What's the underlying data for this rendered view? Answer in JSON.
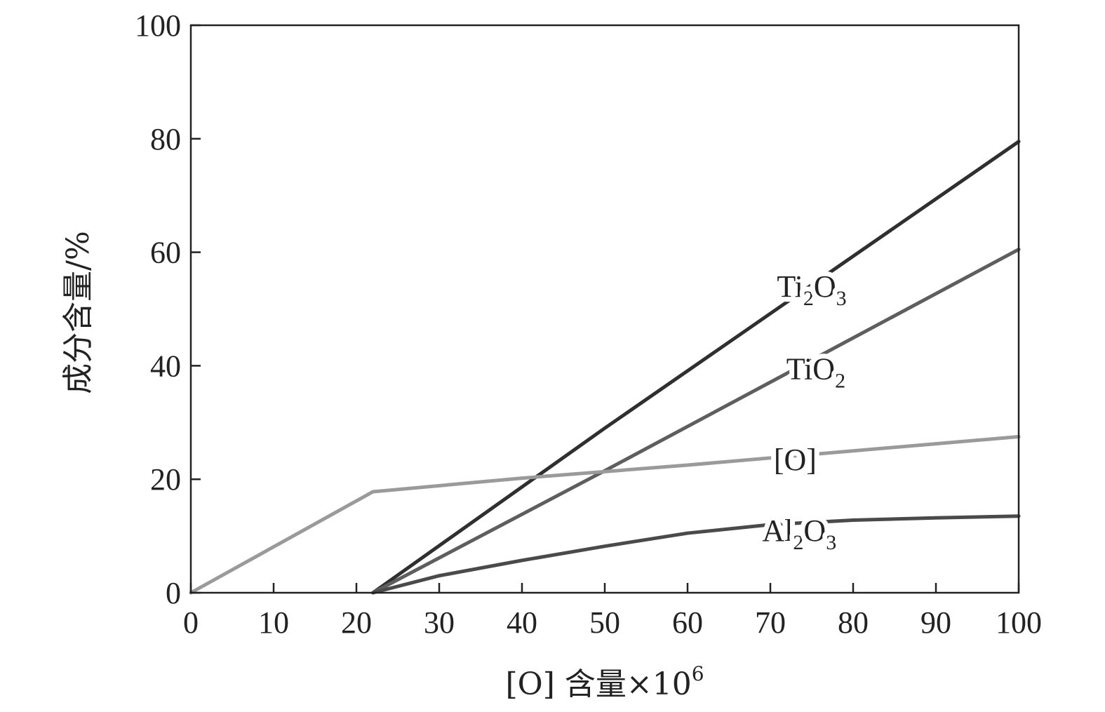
{
  "chart_data": {
    "type": "line",
    "xlabel": "[O] 含量×10",
    "xlabel_sup": "6",
    "ylabel": "成分含量/%",
    "xlim": [
      0,
      100
    ],
    "ylim": [
      0,
      100
    ],
    "x_ticks": [
      0,
      10,
      20,
      30,
      40,
      50,
      60,
      70,
      80,
      90,
      100
    ],
    "y_ticks": [
      0,
      20,
      40,
      60,
      80,
      100
    ],
    "grid": false,
    "series": [
      {
        "name": "Ti2O3",
        "label_parts": [
          [
            "Ti",
            ""
          ],
          [
            "2",
            "sub"
          ],
          [
            "O",
            ""
          ],
          [
            "3",
            "sub"
          ]
        ],
        "color": "#2f2f2f",
        "label_at": [
          75,
          54
        ],
        "x": [
          22,
          50,
          100
        ],
        "y": [
          0,
          29,
          79.5
        ]
      },
      {
        "name": "TiO2",
        "label_parts": [
          [
            "TiO",
            ""
          ],
          [
            "2",
            "sub"
          ]
        ],
        "color": "#5e5e5e",
        "label_at": [
          75.5,
          39.5
        ],
        "x": [
          22,
          50,
          100
        ],
        "y": [
          0,
          21.5,
          60.5
        ]
      },
      {
        "name": "[O]",
        "label_parts": [
          [
            "[O]",
            ""
          ]
        ],
        "color": "#9a9a9a",
        "label_at": [
          73,
          23.5
        ],
        "x": [
          0,
          22,
          40,
          60,
          100
        ],
        "y": [
          0,
          17.8,
          20.2,
          22.5,
          27.5
        ]
      },
      {
        "name": "Al2O3",
        "label_parts": [
          [
            "Al",
            ""
          ],
          [
            "2",
            "sub"
          ],
          [
            "O",
            ""
          ],
          [
            "3",
            "sub"
          ]
        ],
        "color": "#4a4a4a",
        "label_at": [
          73.5,
          11
        ],
        "x": [
          22,
          30,
          40,
          50,
          60,
          70,
          80,
          90,
          100
        ],
        "y": [
          0,
          3.0,
          5.7,
          8.2,
          10.5,
          12.0,
          12.8,
          13.2,
          13.5
        ]
      }
    ]
  }
}
